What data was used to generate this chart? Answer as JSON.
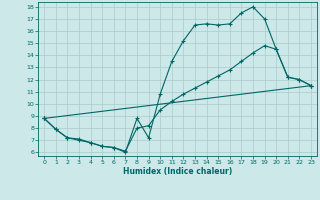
{
  "xlabel": "Humidex (Indice chaleur)",
  "bg_color": "#cce8e8",
  "grid_color": "#aacccc",
  "line_color": "#006666",
  "xlim": [
    -0.5,
    23.5
  ],
  "ylim": [
    5.7,
    18.4
  ],
  "yticks": [
    6,
    7,
    8,
    9,
    10,
    11,
    12,
    13,
    14,
    15,
    16,
    17,
    18
  ],
  "xticks": [
    0,
    1,
    2,
    3,
    4,
    5,
    6,
    7,
    8,
    9,
    10,
    11,
    12,
    13,
    14,
    15,
    16,
    17,
    18,
    19,
    20,
    21,
    22,
    23
  ],
  "line1_x": [
    0,
    1,
    2,
    3,
    4,
    5,
    6,
    7,
    8,
    9,
    10,
    11,
    12,
    13,
    14,
    15,
    16,
    17,
    18,
    19,
    20,
    21,
    22,
    23
  ],
  "line1_y": [
    8.8,
    7.9,
    7.2,
    7.0,
    6.8,
    6.5,
    6.4,
    6.0,
    8.8,
    7.2,
    10.8,
    13.5,
    15.2,
    16.5,
    16.6,
    16.5,
    16.6,
    17.5,
    18.0,
    17.0,
    14.5,
    12.2,
    12.0,
    11.5
  ],
  "line2_x": [
    0,
    1,
    2,
    3,
    4,
    5,
    6,
    7,
    8,
    9,
    10,
    11,
    12,
    13,
    14,
    15,
    16,
    17,
    18,
    19,
    20,
    21,
    22,
    23
  ],
  "line2_y": [
    8.8,
    7.9,
    7.2,
    7.1,
    6.8,
    6.5,
    6.4,
    6.1,
    8.0,
    8.2,
    9.5,
    10.2,
    10.8,
    11.3,
    11.8,
    12.3,
    12.8,
    13.5,
    14.2,
    14.8,
    14.5,
    12.2,
    12.0,
    11.5
  ],
  "line3_x": [
    0,
    23
  ],
  "line3_y": [
    8.8,
    11.5
  ]
}
